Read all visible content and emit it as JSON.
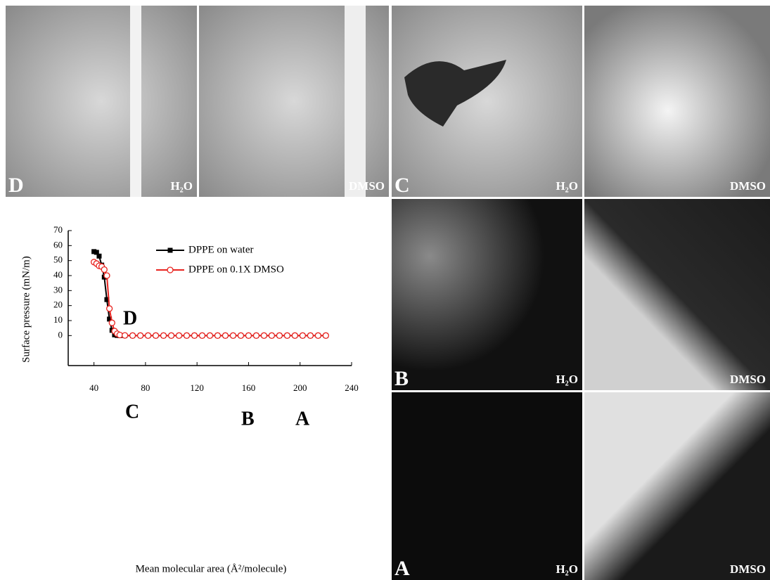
{
  "chart_data": {
    "type": "line",
    "x_label": "Mean molecular area (Å²/molecule)",
    "y_label": "Surface pressure (mN/m)",
    "annotations": [
      "D",
      "C",
      "B",
      "A"
    ],
    "x": [
      40,
      42,
      44,
      46,
      48,
      50,
      52,
      54,
      56,
      58,
      60,
      64,
      70,
      76,
      82,
      88,
      94,
      100,
      106,
      112,
      118,
      124,
      130,
      136,
      142,
      148,
      154,
      160,
      166,
      172,
      178,
      184,
      190,
      196,
      202,
      208,
      214,
      220
    ],
    "series": [
      {
        "name": "DPPE on water",
        "color": "#000000",
        "values": [
          56,
          55.5,
          53,
          47,
          39,
          24,
          11,
          3.5,
          0.5,
          0.1,
          0,
          0,
          0,
          0,
          0,
          0,
          0,
          0,
          0,
          0,
          0,
          0,
          0,
          0,
          0,
          0,
          0,
          0,
          0,
          0,
          0,
          0,
          0,
          0,
          0,
          0,
          0,
          0
        ]
      },
      {
        "name": "DPPE on 0.1X DMSO",
        "color": "#e8231f",
        "values": [
          49,
          48,
          46.5,
          46,
          44,
          40,
          18,
          8.5,
          3,
          1.2,
          0.4,
          0.1,
          0,
          0,
          0,
          0,
          0,
          0,
          0,
          0,
          0,
          0,
          0,
          0,
          0,
          0,
          0,
          0,
          0,
          0,
          0,
          0,
          0,
          0,
          0,
          0,
          0,
          0
        ]
      }
    ],
    "xlim": [
      20,
      240
    ],
    "xticks": [
      40,
      80,
      120,
      160,
      200,
      240
    ],
    "ylim": [
      -20,
      70
    ],
    "yticks": [
      0,
      10,
      20,
      30,
      40,
      50,
      60,
      70
    ]
  },
  "images": [
    {
      "letter": "D",
      "medium": "H₂O"
    },
    {
      "medium": "DMSO"
    },
    {
      "letter": "C",
      "medium": "H₂O"
    },
    {
      "medium": "DMSO"
    },
    {
      "letter": "B",
      "medium": "H₂O"
    },
    {
      "medium": "DMSO"
    },
    {
      "letter": "A",
      "medium": "H₂O"
    },
    {
      "medium": "DMSO"
    }
  ]
}
